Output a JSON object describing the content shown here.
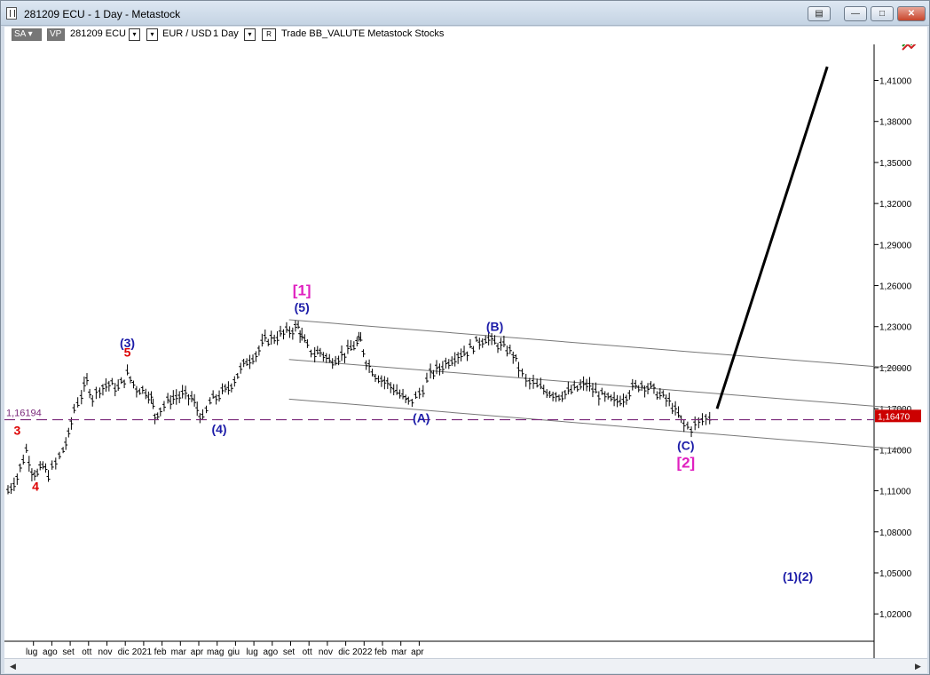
{
  "window": {
    "title": "281209 ECU - 1 Day - Metastock",
    "buttons": [
      "▤",
      "—",
      "□",
      "✕"
    ]
  },
  "toolbar": {
    "sa_label": "SA",
    "vp_label": "VP",
    "symbol": "281209 ECU",
    "instrument": "EUR / USD",
    "period": "1 Day",
    "r_label": "R",
    "items": "Trade  BB_VALUTE  Metastock  Stocks"
  },
  "chart_data": {
    "type": "ohlc",
    "y_ticks": [
      "1,41000",
      "1,38000",
      "1,35000",
      "1,32000",
      "1,29000",
      "1,26000",
      "1,23000",
      "1,20000",
      "1,17000",
      "1,14000",
      "1,11000",
      "1,08000",
      "1,05000",
      "1,02000"
    ],
    "y_tick_values": [
      1.41,
      1.38,
      1.35,
      1.32,
      1.29,
      1.26,
      1.23,
      1.2,
      1.17,
      1.14,
      1.11,
      1.08,
      1.05,
      1.02
    ],
    "ylim": [
      1.0,
      1.435
    ],
    "x_ticks": [
      "lug",
      "ago",
      "set",
      "ott",
      "nov",
      "dic",
      "2021",
      "feb",
      "mar",
      "apr",
      "mag",
      "giu",
      "lug",
      "ago",
      "set",
      "ott",
      "nov",
      "dic",
      "2022",
      "feb",
      "mar",
      "apr"
    ],
    "reference_line": {
      "value": 1.16194,
      "label": "1,16194"
    },
    "last_price": {
      "value": 1.1647,
      "label": "1,16470"
    },
    "price_path": [
      [
        0.0,
        1.11
      ],
      [
        0.5,
        1.12
      ],
      [
        1.0,
        1.14
      ],
      [
        1.3,
        1.125
      ],
      [
        1.6,
        1.122
      ],
      [
        1.9,
        1.128
      ],
      [
        2.2,
        1.122
      ],
      [
        2.6,
        1.13
      ],
      [
        3.0,
        1.14
      ],
      [
        3.3,
        1.15
      ],
      [
        3.6,
        1.17
      ],
      [
        4.0,
        1.18
      ],
      [
        4.3,
        1.19
      ],
      [
        4.6,
        1.178
      ],
      [
        5.0,
        1.185
      ],
      [
        5.5,
        1.188
      ],
      [
        6.0,
        1.185
      ],
      [
        6.5,
        1.195
      ],
      [
        7.0,
        1.185
      ],
      [
        7.5,
        1.183
      ],
      [
        7.8,
        1.178
      ],
      [
        8.0,
        1.165
      ],
      [
        8.3,
        1.17
      ],
      [
        8.7,
        1.175
      ],
      [
        9.0,
        1.178
      ],
      [
        9.5,
        1.18
      ],
      [
        10.0,
        1.178
      ],
      [
        10.3,
        1.17
      ],
      [
        10.6,
        1.162
      ],
      [
        11.0,
        1.175
      ],
      [
        11.5,
        1.18
      ],
      [
        12.0,
        1.185
      ],
      [
        12.5,
        1.195
      ],
      [
        13.0,
        1.205
      ],
      [
        13.5,
        1.21
      ],
      [
        14.0,
        1.22
      ],
      [
        14.5,
        1.222
      ],
      [
        15.0,
        1.225
      ],
      [
        15.5,
        1.228
      ],
      [
        15.8,
        1.23
      ],
      [
        16.0,
        1.222
      ],
      [
        16.3,
        1.215
      ],
      [
        16.7,
        1.21
      ],
      [
        17.0,
        1.212
      ],
      [
        17.5,
        1.205
      ],
      [
        18.0,
        1.208
      ],
      [
        18.5,
        1.212
      ],
      [
        19.0,
        1.218
      ],
      [
        19.2,
        1.22
      ],
      [
        19.5,
        1.205
      ],
      [
        20.0,
        1.195
      ],
      [
        20.5,
        1.19
      ],
      [
        21.0,
        1.185
      ],
      [
        21.5,
        1.178
      ],
      [
        21.8,
        1.175
      ],
      [
        22.2,
        1.178
      ],
      [
        22.6,
        1.185
      ],
      [
        23.0,
        1.195
      ],
      [
        23.5,
        1.2
      ],
      [
        24.0,
        1.205
      ],
      [
        24.5,
        1.21
      ],
      [
        25.0,
        1.212
      ],
      [
        25.5,
        1.218
      ],
      [
        26.0,
        1.222
      ],
      [
        26.5,
        1.218
      ],
      [
        27.0,
        1.215
      ],
      [
        27.5,
        1.21
      ],
      [
        27.8,
        1.2
      ],
      [
        28.2,
        1.19
      ],
      [
        28.6,
        1.188
      ],
      [
        29.0,
        1.185
      ],
      [
        29.5,
        1.182
      ],
      [
        30.0,
        1.18
      ],
      [
        30.5,
        1.182
      ],
      [
        31.0,
        1.185
      ],
      [
        31.5,
        1.188
      ],
      [
        32.0,
        1.182
      ],
      [
        32.5,
        1.178
      ],
      [
        33.0,
        1.175
      ],
      [
        33.5,
        1.178
      ],
      [
        34.0,
        1.185
      ],
      [
        34.5,
        1.188
      ],
      [
        35.0,
        1.185
      ],
      [
        35.5,
        1.18
      ],
      [
        36.0,
        1.175
      ],
      [
        36.5,
        1.165
      ],
      [
        36.8,
        1.158
      ],
      [
        37.2,
        1.156
      ],
      [
        37.6,
        1.16
      ],
      [
        38.0,
        1.163
      ],
      [
        38.4,
        1.165
      ]
    ],
    "projection_line": [
      [
        38.6,
        1.17
      ],
      [
        44.6,
        1.42
      ]
    ],
    "channel_lines": [
      {
        "x": [
          15.3,
          48.9
        ],
        "y": [
          1.235,
          1.199
        ]
      },
      {
        "x": [
          15.3,
          48.9
        ],
        "y": [
          1.206,
          1.17
        ]
      },
      {
        "x": [
          15.3,
          48.9
        ],
        "y": [
          1.177,
          1.14
        ]
      }
    ],
    "wave_labels": [
      {
        "text": "3",
        "x": 0.5,
        "y": 1.151,
        "color": "#dd0000"
      },
      {
        "text": "4",
        "x": 1.5,
        "y": 1.11,
        "color": "#dd0000"
      },
      {
        "text": "(3)",
        "x": 6.5,
        "y": 1.215,
        "color": "#1c1ca8"
      },
      {
        "text": "5",
        "x": 6.5,
        "y": 1.208,
        "color": "#dd0000"
      },
      {
        "text": "(4)",
        "x": 11.5,
        "y": 1.152,
        "color": "#1c1ca8"
      },
      {
        "text": "[1]",
        "x": 16.0,
        "y": 1.253,
        "color": "#e020c0"
      },
      {
        "text": "(5)",
        "x": 16.0,
        "y": 1.241,
        "color": "#1c1ca8"
      },
      {
        "text": "(A)",
        "x": 22.5,
        "y": 1.16,
        "color": "#1c1ca8"
      },
      {
        "text": "(B)",
        "x": 26.5,
        "y": 1.227,
        "color": "#1c1ca8"
      },
      {
        "text": "(C)",
        "x": 36.9,
        "y": 1.14,
        "color": "#1c1ca8"
      },
      {
        "text": "[2]",
        "x": 36.9,
        "y": 1.127,
        "color": "#e020c0"
      },
      {
        "text": "(1)(2)",
        "x": 43.0,
        "y": 1.044,
        "color": "#1c1ca8"
      }
    ]
  },
  "colors": {
    "bars": "#000000",
    "reference_line": "#7b2a7b",
    "label_blue": "#1c1ca8",
    "label_red": "#dd0000",
    "label_magenta": "#e020c0",
    "last_price_box": "#cc0000"
  },
  "scrollbar": {
    "left_arrow": "◀",
    "right_arrow": "▶"
  }
}
